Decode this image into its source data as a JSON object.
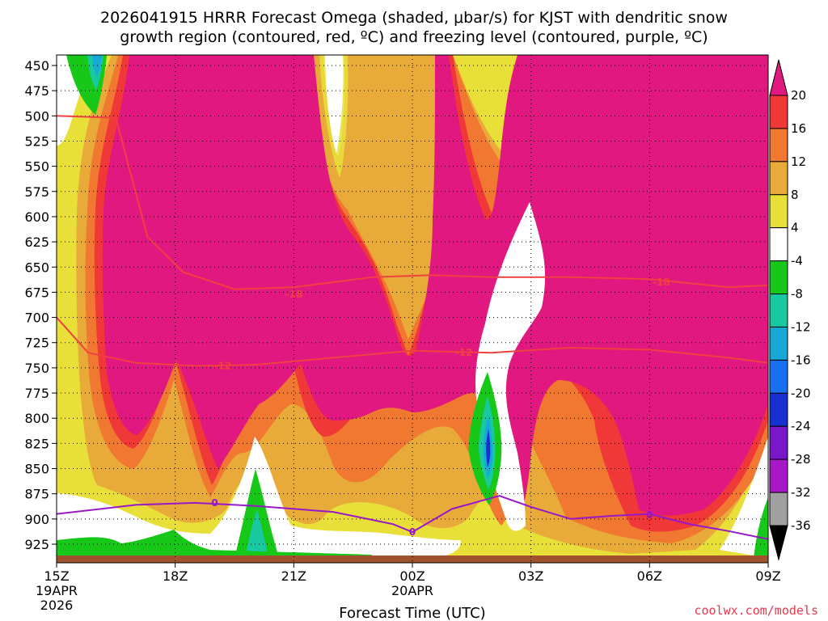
{
  "chart_data": {
    "type": "heatmap",
    "title_line1": "2026041915 HRRR Forecast Omega (shaded, μbar/s) for KJST with dendritic snow",
    "title_line2": "growth region (contoured, red, ºC) and freezing level (contoured, purple, ºC)",
    "xlabel": "Forecast Time (UTC)",
    "x_ticks": [
      {
        "hour": 0,
        "label": "15Z",
        "sub": [
          "19APR",
          "2026"
        ]
      },
      {
        "hour": 3,
        "label": "18Z",
        "sub": []
      },
      {
        "hour": 6,
        "label": "21Z",
        "sub": []
      },
      {
        "hour": 9,
        "label": "00Z",
        "sub": [
          "20APR"
        ]
      },
      {
        "hour": 12,
        "label": "03Z",
        "sub": []
      },
      {
        "hour": 15,
        "label": "06Z",
        "sub": []
      },
      {
        "hour": 18,
        "label": "09Z",
        "sub": []
      }
    ],
    "y_ticks": [
      "450",
      "475",
      "500",
      "525",
      "550",
      "575",
      "600",
      "625",
      "650",
      "675",
      "700",
      "725",
      "750",
      "775",
      "800",
      "825",
      "850",
      "875",
      "900",
      "925"
    ],
    "colorbar": {
      "labels": [
        "20",
        "16",
        "12",
        "8",
        "4",
        "-4",
        "-8",
        "-12",
        "-16",
        "-20",
        "-24",
        "-28",
        "-32",
        "-36"
      ],
      "colors": [
        "#e01880",
        "#f03838",
        "#f07830",
        "#e8aa38",
        "#e8e038",
        "#ffffff",
        "#18c818",
        "#18c8a0",
        "#18a8d8",
        "#1870f0",
        "#1830d0",
        "#7818c8",
        "#a818c8",
        "#a0a0a0",
        "#000000"
      ]
    },
    "omega_zones": [
      {
        "id": "magenta-main",
        "value": 20,
        "color": "#e01880"
      },
      {
        "id": "magenta-right",
        "value": 20,
        "color": "#e01880"
      },
      {
        "id": "updraft-green-0202z",
        "value": -12,
        "color": "#18c818"
      },
      {
        "id": "updraft-green-1559z",
        "value": -8,
        "color": "#18c818"
      },
      {
        "id": "updraft-green-2000z",
        "value": -8,
        "color": "#18c818"
      }
    ],
    "dgz_contours": [
      {
        "value": -18,
        "label": "-18",
        "color": "#f04040",
        "points": [
          [
            0,
            500
          ],
          [
            1.5,
            502
          ],
          [
            2.3,
            620
          ],
          [
            3.2,
            655
          ],
          [
            4.5,
            672
          ],
          [
            6,
            670
          ],
          [
            8,
            660
          ],
          [
            9.5,
            658
          ],
          [
            11,
            660
          ],
          [
            13,
            660
          ],
          [
            15,
            662
          ],
          [
            17,
            670
          ],
          [
            18,
            668
          ]
        ]
      },
      {
        "value": -12,
        "label": "-12",
        "color": "#f04040",
        "points": [
          [
            0,
            700
          ],
          [
            0.8,
            735
          ],
          [
            2,
            745
          ],
          [
            3.5,
            748
          ],
          [
            5,
            747
          ],
          [
            7,
            740
          ],
          [
            9,
            733
          ],
          [
            11,
            735
          ],
          [
            13,
            730
          ],
          [
            15,
            732
          ],
          [
            17,
            740
          ],
          [
            18,
            745
          ]
        ]
      }
    ],
    "freezing_level": {
      "value": 0,
      "label": "0",
      "color": "#9818c8",
      "points": [
        [
          0,
          895
        ],
        [
          2,
          886
        ],
        [
          3.5,
          884
        ],
        [
          5,
          887
        ],
        [
          7,
          893
        ],
        [
          8.5,
          905
        ],
        [
          9,
          913
        ],
        [
          10,
          890
        ],
        [
          11.2,
          877
        ],
        [
          12,
          888
        ],
        [
          13,
          900
        ],
        [
          14,
          897
        ],
        [
          15,
          895
        ],
        [
          16,
          905
        ],
        [
          17,
          912
        ],
        [
          18,
          920
        ]
      ]
    },
    "contour_labels": [
      {
        "text": "-18",
        "hour": 6,
        "hpa": 677
      },
      {
        "text": "-18",
        "hour": 15.3,
        "hpa": 665
      },
      {
        "text": "-12",
        "hour": 4.2,
        "hpa": 748
      },
      {
        "text": "-12",
        "hour": 10.3,
        "hpa": 735
      },
      {
        "text": "0",
        "hour": 4,
        "hpa": 884
      },
      {
        "text": "0",
        "hour": 9,
        "hpa": 913
      },
      {
        "text": "0",
        "hour": 15,
        "hpa": 896
      }
    ]
  },
  "credit": "coolwx.com/models"
}
